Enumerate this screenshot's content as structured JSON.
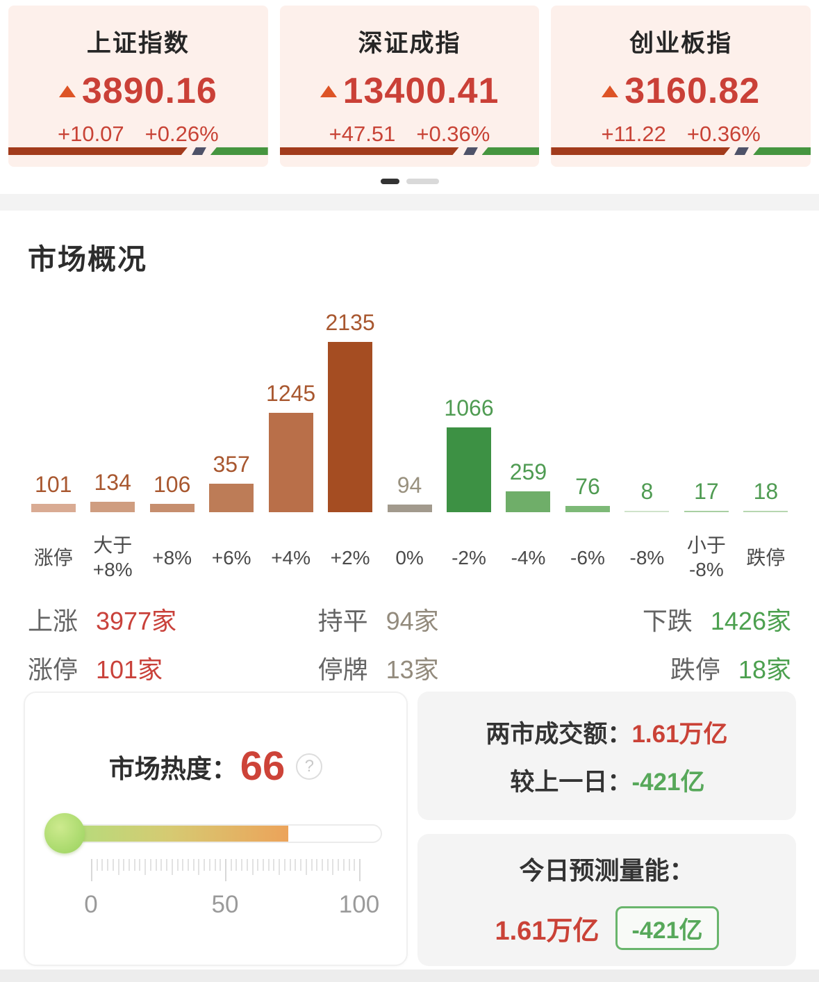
{
  "indices": {
    "cards": [
      {
        "name": "上证指数",
        "value": "3890.16",
        "change": "+10.07",
        "change_pct": "+0.26%"
      },
      {
        "name": "深证成指",
        "value": "13400.41",
        "change": "+47.51",
        "change_pct": "+0.36%"
      },
      {
        "name": "创业板指",
        "value": "3160.82",
        "change": "+11.22",
        "change_pct": "+0.36%"
      }
    ],
    "colors": {
      "card_bg": "#fdf0eb",
      "number_red": "#ca4037",
      "triangle": "#dd5426",
      "adv_bar_red": "#a23b1c",
      "adv_bar_slash": "#4e5268",
      "adv_bar_green": "#46953f"
    }
  },
  "pagination": {
    "dot_count": 2,
    "active_index": 0
  },
  "market_overview": {
    "title": "市场概况",
    "chart_data": {
      "type": "bar",
      "categories": [
        "涨停",
        "大于\n+8%",
        "+8%",
        "+6%",
        "+4%",
        "+2%",
        "0%",
        "-2%",
        "-4%",
        "-6%",
        "-8%",
        "小于\n-8%",
        "跌停"
      ],
      "values": [
        101,
        134,
        106,
        357,
        1245,
        2135,
        94,
        1066,
        259,
        76,
        8,
        17,
        18
      ],
      "bar_colors": [
        "#d9ab93",
        "#cf9d80",
        "#c68e6e",
        "#bd7c57",
        "#b96f49",
        "#a54d22",
        "#a29a8d",
        "#3d9144",
        "#6fae69",
        "#7db977",
        "#cfe3ca",
        "#a8cfa2",
        "#b7d7b0"
      ],
      "value_label_colors": [
        "#a8572f",
        "#a8572f",
        "#a8572f",
        "#a8572f",
        "#a8572f",
        "#a8572f",
        "#99917f",
        "#4f9b52",
        "#4f9b52",
        "#4f9b52",
        "#4f9b52",
        "#4f9b52",
        "#4f9b52"
      ],
      "title": "市场概况",
      "xlabel": "",
      "ylabel": "",
      "ymax": 2135,
      "grid": false,
      "legend": false
    },
    "summary": [
      {
        "label": "上涨",
        "value": "3977家",
        "color": "#c9413a"
      },
      {
        "label": "持平",
        "value": "94家",
        "color": "#938b7d"
      },
      {
        "label": "下跌",
        "value": "1426家",
        "color": "#4ca04f"
      },
      {
        "label": "涨停",
        "value": "101家",
        "color": "#c9413a"
      },
      {
        "label": "停牌",
        "value": "13家",
        "color": "#938b7d"
      },
      {
        "label": "跌停",
        "value": "18家",
        "color": "#4ca04f"
      }
    ]
  },
  "heat": {
    "label": "市场热度：",
    "value": "66",
    "help_icon": "?",
    "percent": 66,
    "fill_percent": 70,
    "scale_labels": [
      "0",
      "50",
      "100"
    ],
    "fill_colors": [
      "#b5dc7c",
      "#eca35a"
    ]
  },
  "turnover": {
    "rows": [
      {
        "label": "两市成交额：",
        "value": "1.61万亿",
        "color": "#ca4237"
      },
      {
        "label": "较上一日：",
        "value": "-421亿",
        "color": "#57a85a"
      }
    ]
  },
  "forecast": {
    "title": "今日预测量能：",
    "value": "1.61万亿",
    "badge": "-421亿"
  }
}
